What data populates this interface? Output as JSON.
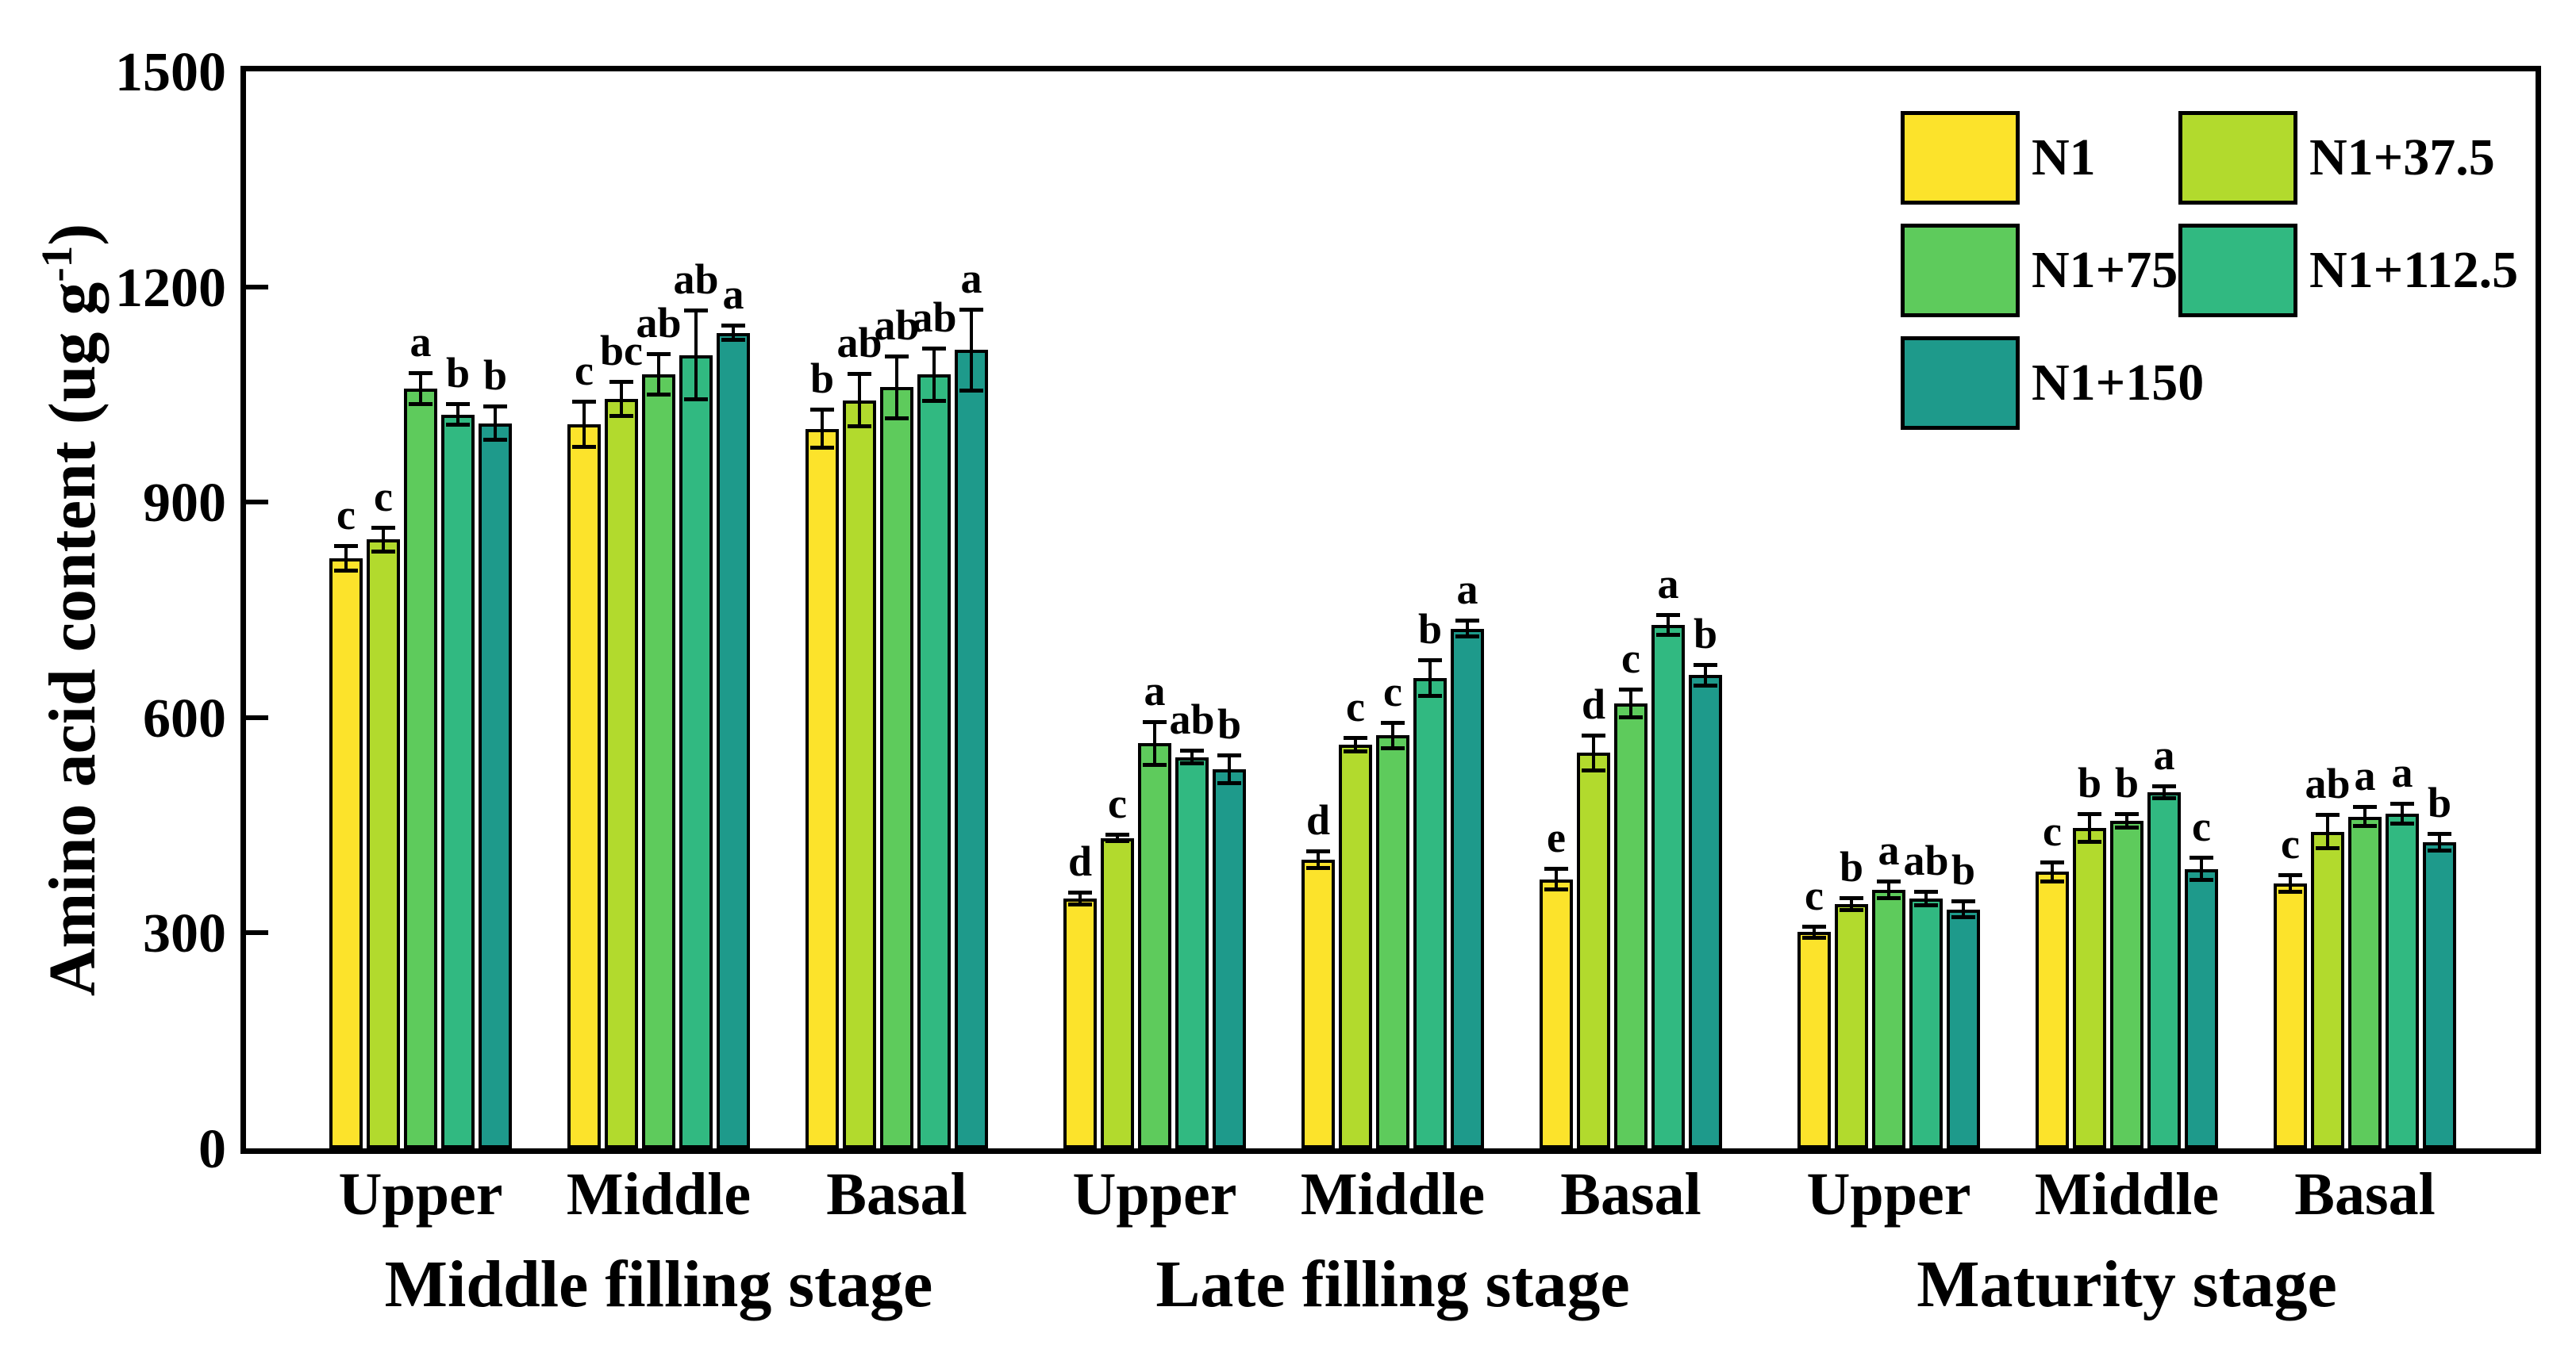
{
  "chart_data": {
    "type": "bar",
    "title": "",
    "ylabel_prefix": "Amino acid content (ug g",
    "ylabel_sup": "-1",
    "ylabel_suffix": ")",
    "ylim": [
      0,
      1500
    ],
    "yticks": [
      0,
      300,
      600,
      900,
      1200,
      1500
    ],
    "ytick_labels": [
      "0",
      "300",
      "600",
      "900",
      "1200",
      "1500"
    ],
    "grid": false,
    "legend_position": "top-right-inside",
    "treatments": [
      {
        "name": "N1",
        "color": "#FCE32B"
      },
      {
        "name": "N1+37.5",
        "color": "#B2DA2D"
      },
      {
        "name": "N1+75",
        "color": "#5ECB5C"
      },
      {
        "name": "N1+112.5",
        "color": "#31B981"
      },
      {
        "name": "N1+150",
        "color": "#1E9A8B"
      }
    ],
    "legend_layout": [
      {
        "label": "N1",
        "row": 0,
        "col": 0
      },
      {
        "label": "N1+37.5",
        "row": 0,
        "col": 1
      },
      {
        "label": "N1+75",
        "row": 1,
        "col": 0
      },
      {
        "label": "N1+112.5",
        "row": 1,
        "col": 1
      },
      {
        "label": "N1+150",
        "row": 2,
        "col": 0
      }
    ],
    "stages": [
      {
        "label": "Middle filling stage",
        "groups": [
          {
            "label": "Upper",
            "values": [
              822,
              848,
              1058,
              1022,
              1010
            ],
            "errors": [
              18,
              17,
              22,
              15,
              24
            ],
            "letters": [
              "c",
              "c",
              "a",
              "b",
              "b"
            ]
          },
          {
            "label": "Middle",
            "values": [
              1008,
              1044,
              1078,
              1105,
              1136
            ],
            "errors": [
              32,
              24,
              29,
              62,
              10
            ],
            "letters": [
              "c",
              "bc",
              "ab",
              "ab",
              "a"
            ]
          },
          {
            "label": "Basal",
            "values": [
              1002,
              1042,
              1060,
              1078,
              1112
            ],
            "errors": [
              27,
              37,
              44,
              37,
              57
            ],
            "letters": [
              "b",
              "ab",
              "ab",
              "ab",
              "a"
            ]
          }
        ]
      },
      {
        "label": "Late filling stage",
        "groups": [
          {
            "label": "Upper",
            "values": [
              348,
              432,
              564,
              545,
              528
            ],
            "errors": [
              9,
              5,
              30,
              9,
              20
            ],
            "letters": [
              "d",
              "c",
              "a",
              "ab",
              "b"
            ]
          },
          {
            "label": "Middle",
            "values": [
              402,
              562,
              575,
              655,
              724
            ],
            "errors": [
              12,
              10,
              18,
              25,
              12
            ],
            "letters": [
              "d",
              "c",
              "c",
              "b",
              "a"
            ]
          },
          {
            "label": "Basal",
            "values": [
              375,
              551,
              620,
              729,
              659
            ],
            "errors": [
              15,
              25,
              20,
              14,
              15
            ],
            "letters": [
              "e",
              "d",
              "c",
              "a",
              "b"
            ]
          }
        ]
      },
      {
        "label": "Maturity stage",
        "groups": [
          {
            "label": "Upper",
            "values": [
              301,
              340,
              360,
              348,
              333
            ],
            "errors": [
              8,
              9,
              12,
              10,
              12
            ],
            "letters": [
              "c",
              "b",
              "a",
              "ab",
              "b"
            ]
          },
          {
            "label": "Middle",
            "values": [
              385,
              446,
              456,
              496,
              389
            ],
            "errors": [
              14,
              20,
              10,
              9,
              16
            ],
            "letters": [
              "c",
              "b",
              "b",
              "a",
              "c"
            ]
          },
          {
            "label": "Basal",
            "values": [
              369,
              441,
              462,
              466,
              426
            ],
            "errors": [
              12,
              24,
              14,
              14,
              12
            ],
            "letters": [
              "c",
              "ab",
              "a",
              "a",
              "b"
            ]
          }
        ]
      }
    ]
  }
}
